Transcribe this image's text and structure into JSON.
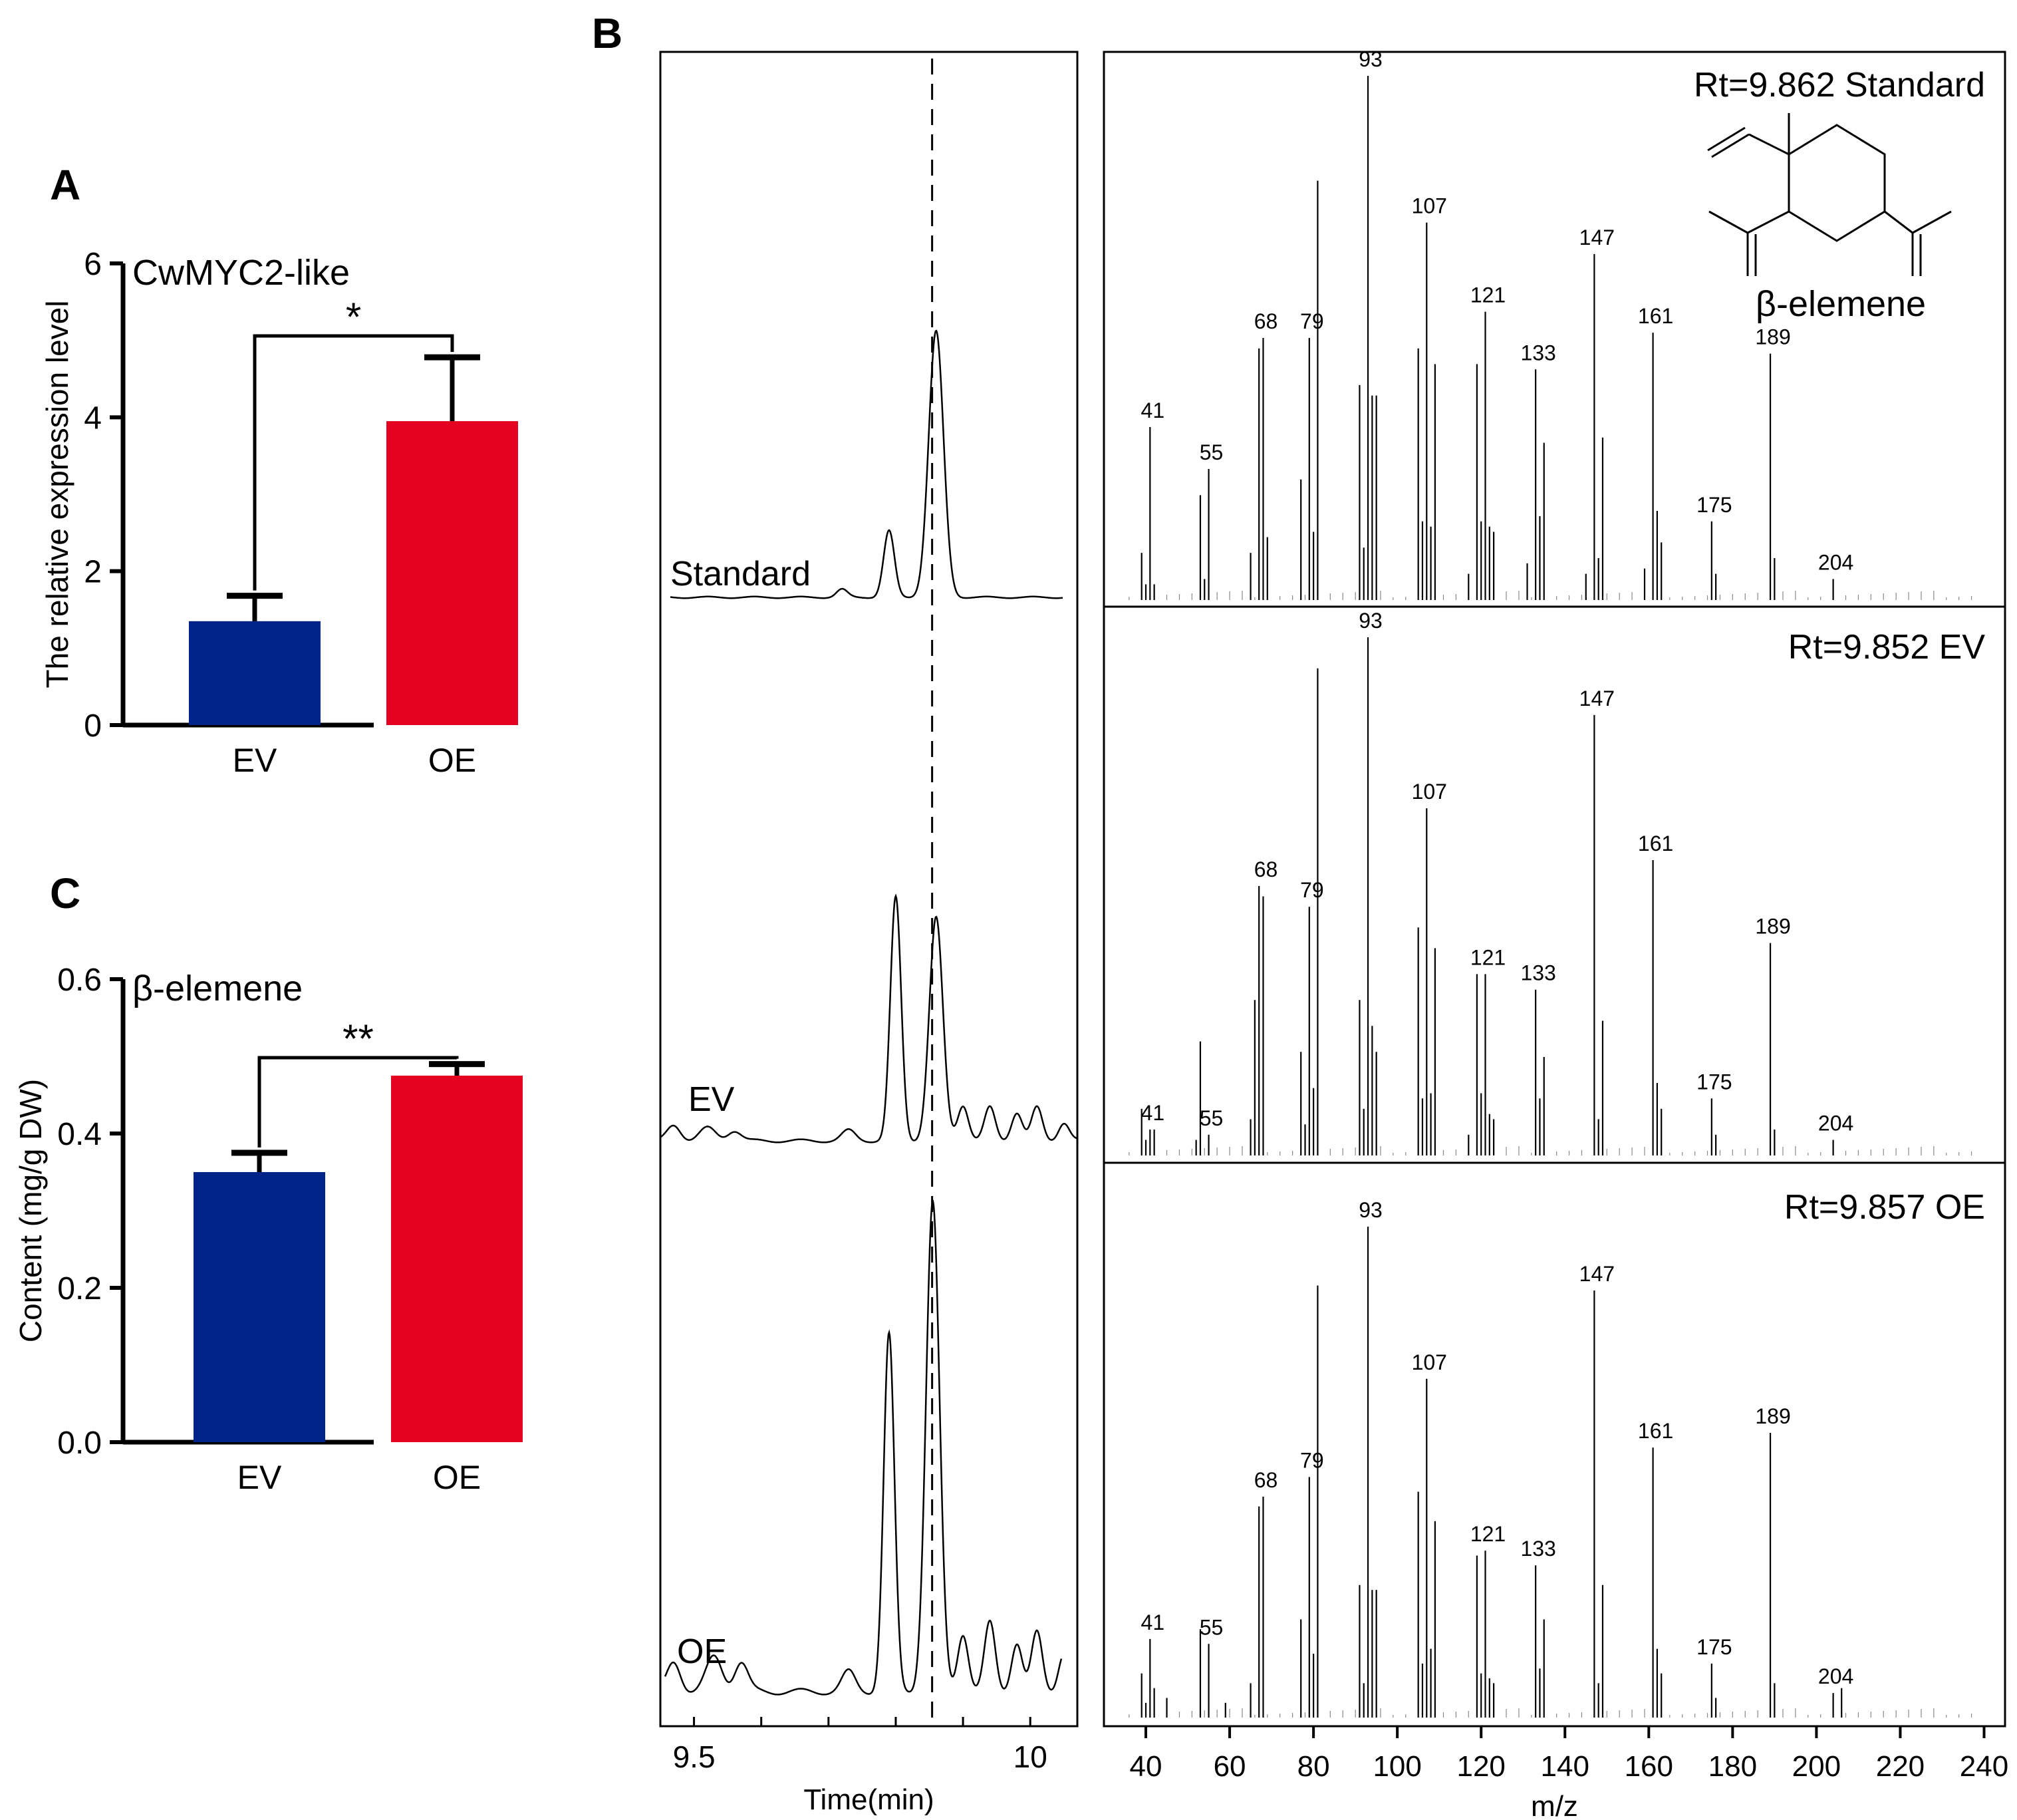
{
  "colors": {
    "ev": "#00238A",
    "oe": "#E30021",
    "axis": "#000000"
  },
  "panel_labels": {
    "a": "A",
    "b": "B",
    "c": "C"
  },
  "chart_data": [
    {
      "id": "A",
      "type": "bar",
      "title": "CwMYC2-like",
      "ylabel": "The relative expression level",
      "categories": [
        "EV",
        "OE"
      ],
      "values": [
        1.35,
        3.95
      ],
      "errors": [
        0.33,
        0.83
      ],
      "ylim": [
        0,
        6
      ],
      "yticks": [
        "0",
        "2",
        "4",
        "6"
      ],
      "significance": "*"
    },
    {
      "id": "C",
      "type": "bar",
      "title": "β-elemene",
      "ylabel": "Content (mg/g DW)",
      "categories": [
        "EV",
        "OE"
      ],
      "values": [
        0.35,
        0.475
      ],
      "errors": [
        0.025,
        0.015
      ],
      "ylim": [
        0,
        0.6
      ],
      "yticks": [
        "0.0",
        "0.2",
        "0.4",
        "0.6"
      ],
      "significance": "**"
    },
    {
      "id": "B-chromatogram",
      "type": "line",
      "xlabel": "Time(min)",
      "xticks": [
        "9.5",
        "10"
      ],
      "xrange": [
        9.45,
        10.07
      ],
      "dashed_line_at": 9.86,
      "traces": [
        {
          "label": "Standard",
          "baseline": 0.02,
          "peaks": [
            [
              9.72,
              0.03,
              0.008
            ],
            [
              9.79,
              0.25,
              0.008
            ],
            [
              9.86,
              1.0,
              0.011
            ]
          ]
        },
        {
          "label": "EV",
          "baseline": 0.04,
          "peaks": [
            [
              9.47,
              0.06,
              0.01
            ],
            [
              9.52,
              0.05,
              0.012
            ],
            [
              9.56,
              0.04,
              0.01
            ],
            [
              9.73,
              0.04,
              0.01
            ],
            [
              9.8,
              0.95,
              0.008
            ],
            [
              9.86,
              0.87,
              0.01
            ],
            [
              9.9,
              0.14,
              0.008
            ],
            [
              9.94,
              0.13,
              0.008
            ],
            [
              9.98,
              0.11,
              0.008
            ],
            [
              10.01,
              0.13,
              0.008
            ],
            [
              10.05,
              0.07,
              0.008
            ]
          ]
        },
        {
          "label": "OE",
          "baseline": 0.04,
          "peaks": [
            [
              9.47,
              0.06,
              0.01
            ],
            [
              9.53,
              0.07,
              0.012
            ],
            [
              9.57,
              0.06,
              0.01
            ],
            [
              9.73,
              0.04,
              0.01
            ],
            [
              9.79,
              0.73,
              0.008
            ],
            [
              9.855,
              1.0,
              0.01
            ],
            [
              9.9,
              0.12,
              0.008
            ],
            [
              9.94,
              0.14,
              0.008
            ],
            [
              9.98,
              0.1,
              0.008
            ],
            [
              10.01,
              0.12,
              0.008
            ],
            [
              10.05,
              0.08,
              0.008
            ]
          ]
        }
      ]
    },
    {
      "id": "B-spectra",
      "type": "bar",
      "xlabel": "m/z",
      "xlim": [
        30,
        245
      ],
      "xticks": [
        40,
        60,
        80,
        100,
        120,
        140,
        160,
        180,
        200,
        220,
        240
      ],
      "compound_label": "β-elemene",
      "spectra": [
        {
          "label": "Rt=9.862 Standard",
          "peaks": [
            [
              39,
              0.09
            ],
            [
              40,
              0.03
            ],
            [
              41,
              0.33
            ],
            [
              42,
              0.03
            ],
            [
              53,
              0.2
            ],
            [
              54,
              0.04
            ],
            [
              55,
              0.25
            ],
            [
              65,
              0.09
            ],
            [
              67,
              0.48
            ],
            [
              68,
              0.5
            ],
            [
              69,
              0.12
            ],
            [
              77,
              0.23
            ],
            [
              79,
              0.5
            ],
            [
              80,
              0.13
            ],
            [
              81,
              0.8
            ],
            [
              91,
              0.41
            ],
            [
              92,
              0.1
            ],
            [
              93,
              1.0
            ],
            [
              94,
              0.39
            ],
            [
              95,
              0.39
            ],
            [
              105,
              0.48
            ],
            [
              106,
              0.15
            ],
            [
              107,
              0.72
            ],
            [
              108,
              0.14
            ],
            [
              109,
              0.45
            ],
            [
              117,
              0.05
            ],
            [
              119,
              0.45
            ],
            [
              120,
              0.15
            ],
            [
              121,
              0.55
            ],
            [
              122,
              0.14
            ],
            [
              123,
              0.13
            ],
            [
              131,
              0.07
            ],
            [
              133,
              0.44
            ],
            [
              134,
              0.16
            ],
            [
              135,
              0.3
            ],
            [
              145,
              0.05
            ],
            [
              147,
              0.66
            ],
            [
              148,
              0.08
            ],
            [
              149,
              0.31
            ],
            [
              159,
              0.06
            ],
            [
              161,
              0.51
            ],
            [
              162,
              0.17
            ],
            [
              163,
              0.11
            ],
            [
              175,
              0.15
            ],
            [
              176,
              0.05
            ],
            [
              189,
              0.47
            ],
            [
              190,
              0.08
            ],
            [
              204,
              0.04
            ]
          ]
        },
        {
          "label": "Rt=9.852  EV",
          "peaks": [
            [
              39,
              0.09
            ],
            [
              40,
              0.03
            ],
            [
              41,
              0.05
            ],
            [
              42,
              0.05
            ],
            [
              52,
              0.03
            ],
            [
              53,
              0.22
            ],
            [
              55,
              0.04
            ],
            [
              65,
              0.07
            ],
            [
              66,
              0.3
            ],
            [
              67,
              0.52
            ],
            [
              68,
              0.5
            ],
            [
              77,
              0.2
            ],
            [
              78,
              0.06
            ],
            [
              79,
              0.48
            ],
            [
              80,
              0.13
            ],
            [
              81,
              0.94
            ],
            [
              91,
              0.3
            ],
            [
              92,
              0.09
            ],
            [
              93,
              1.0
            ],
            [
              94,
              0.25
            ],
            [
              95,
              0.2
            ],
            [
              105,
              0.44
            ],
            [
              106,
              0.11
            ],
            [
              107,
              0.67
            ],
            [
              108,
              0.12
            ],
            [
              109,
              0.4
            ],
            [
              117,
              0.04
            ],
            [
              119,
              0.35
            ],
            [
              120,
              0.12
            ],
            [
              121,
              0.35
            ],
            [
              122,
              0.08
            ],
            [
              123,
              0.07
            ],
            [
              133,
              0.32
            ],
            [
              134,
              0.11
            ],
            [
              135,
              0.19
            ],
            [
              147,
              0.85
            ],
            [
              148,
              0.07
            ],
            [
              149,
              0.26
            ],
            [
              161,
              0.57
            ],
            [
              162,
              0.14
            ],
            [
              163,
              0.09
            ],
            [
              175,
              0.11
            ],
            [
              176,
              0.04
            ],
            [
              189,
              0.41
            ],
            [
              190,
              0.05
            ],
            [
              204,
              0.03
            ]
          ]
        },
        {
          "label": "Rt=9.857  OE",
          "peaks": [
            [
              39,
              0.09
            ],
            [
              40,
              0.03
            ],
            [
              41,
              0.16
            ],
            [
              42,
              0.06
            ],
            [
              45,
              0.04
            ],
            [
              53,
              0.18
            ],
            [
              55,
              0.15
            ],
            [
              59,
              0.03
            ],
            [
              65,
              0.07
            ],
            [
              67,
              0.43
            ],
            [
              68,
              0.45
            ],
            [
              77,
              0.2
            ],
            [
              79,
              0.49
            ],
            [
              80,
              0.13
            ],
            [
              81,
              0.88
            ],
            [
              91,
              0.27
            ],
            [
              92,
              0.07
            ],
            [
              93,
              1.0
            ],
            [
              94,
              0.26
            ],
            [
              95,
              0.26
            ],
            [
              105,
              0.46
            ],
            [
              106,
              0.11
            ],
            [
              107,
              0.69
            ],
            [
              108,
              0.14
            ],
            [
              109,
              0.4
            ],
            [
              119,
              0.33
            ],
            [
              120,
              0.09
            ],
            [
              121,
              0.34
            ],
            [
              122,
              0.08
            ],
            [
              123,
              0.07
            ],
            [
              133,
              0.31
            ],
            [
              134,
              0.1
            ],
            [
              135,
              0.2
            ],
            [
              147,
              0.87
            ],
            [
              148,
              0.07
            ],
            [
              149,
              0.27
            ],
            [
              161,
              0.55
            ],
            [
              162,
              0.14
            ],
            [
              163,
              0.09
            ],
            [
              175,
              0.11
            ],
            [
              176,
              0.04
            ],
            [
              189,
              0.58
            ],
            [
              190,
              0.07
            ],
            [
              204,
              0.05
            ],
            [
              206,
              0.06
            ]
          ]
        }
      ],
      "peak_labels": [
        [
          "41",
          "55",
          "68",
          "79",
          "93",
          "107",
          "121",
          "133",
          "147",
          "161",
          "175",
          "189",
          "204"
        ],
        [
          "41",
          "55",
          "68",
          "79",
          "93",
          "107",
          "121",
          "133",
          "147",
          "161",
          "175",
          "189",
          "204"
        ],
        [
          "41",
          "55",
          "68",
          "79",
          "93",
          "107",
          "121",
          "133",
          "147",
          "161",
          "175",
          "189",
          "204"
        ]
      ]
    }
  ]
}
